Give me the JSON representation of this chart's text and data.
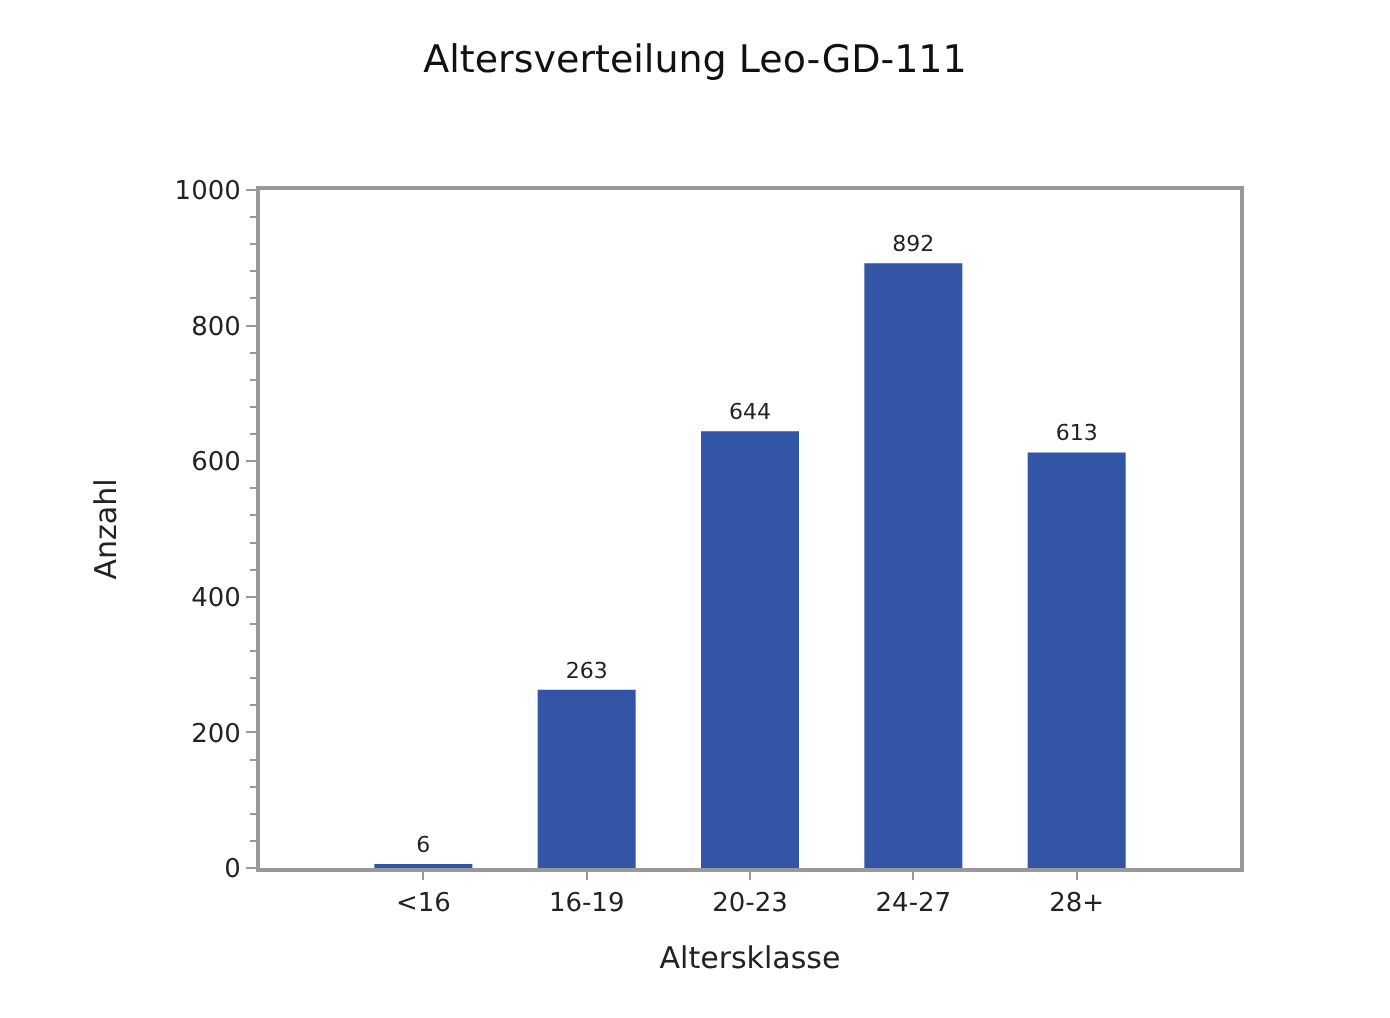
{
  "chart_data": {
    "type": "bar",
    "title": "Altersverteilung Leo-GD-111",
    "xlabel": "Altersklasse",
    "ylabel": "Anzahl",
    "categories": [
      "<16",
      "16-19",
      "20-23",
      "24-27",
      "28+"
    ],
    "values": [
      6,
      263,
      644,
      892,
      613
    ],
    "color": "#3355a5",
    "ylim": [
      0,
      1000
    ],
    "yticks": [
      0,
      200,
      400,
      600,
      800,
      1000
    ],
    "data_labels": true
  }
}
